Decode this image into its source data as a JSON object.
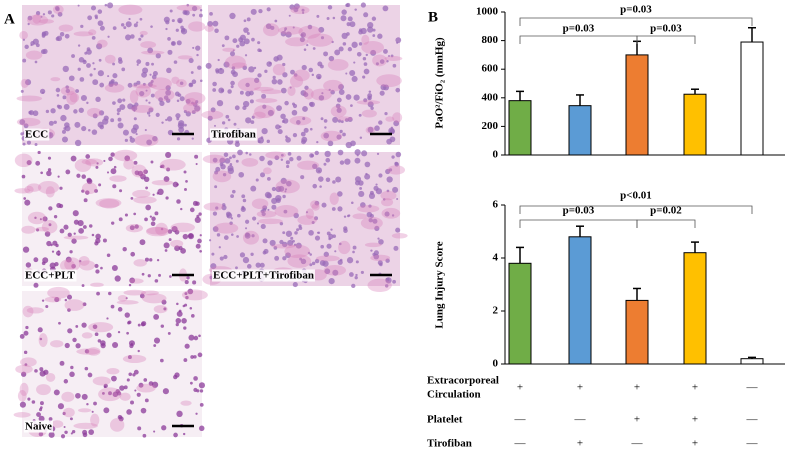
{
  "panel_a": {
    "letter": "A",
    "images": [
      {
        "label": "ECC"
      },
      {
        "label": "Tirofiban"
      },
      {
        "label": "ECC+PLT"
      },
      {
        "label": "ECC+PLT+Tirofiban"
      },
      {
        "label": "Naive"
      }
    ]
  },
  "panel_b": {
    "letter": "B"
  },
  "chart_data": [
    {
      "type": "bar",
      "y_label": "PaO²/FiO₂ (mmHg)",
      "categories": [
        null,
        null,
        null,
        null,
        null
      ],
      "values": [
        380,
        345,
        700,
        425,
        790
      ],
      "errors": [
        65,
        75,
        95,
        35,
        100
      ],
      "colors": [
        "#70ad47",
        "#5b9bd5",
        "#ed7d31",
        "#ffc000",
        "#ffffff"
      ],
      "ylim": [
        0,
        1000
      ],
      "yticks": [
        0,
        200,
        400,
        600,
        800,
        1000
      ],
      "annotations": [
        "p=0.03",
        "p=0.03",
        "p=0.03"
      ]
    },
    {
      "type": "bar",
      "y_label": "Lung Injury Score",
      "categories": [
        null,
        null,
        null,
        null,
        null
      ],
      "values": [
        3.8,
        4.8,
        2.4,
        4.2,
        0.2
      ],
      "errors": [
        0.6,
        0.4,
        0.45,
        0.4,
        0.05
      ],
      "colors": [
        "#70ad47",
        "#5b9bd5",
        "#ed7d31",
        "#ffc000",
        "#ffffff"
      ],
      "ylim": [
        0,
        6
      ],
      "yticks": [
        0,
        2,
        4,
        6
      ],
      "annotations": [
        "p=0.03",
        "p=0.02",
        "p<0.01"
      ]
    }
  ],
  "table": {
    "rows": [
      {
        "label": [
          "Extracorporeal",
          "Circulation"
        ],
        "marks": [
          "+",
          "+",
          "+",
          "+",
          "—"
        ]
      },
      {
        "label": [
          "Platelet"
        ],
        "marks": [
          "—",
          "—",
          "+",
          "+",
          "—"
        ]
      },
      {
        "label": [
          "Tirofiban"
        ],
        "marks": [
          "—",
          "+",
          "—",
          "+",
          "—"
        ]
      }
    ]
  }
}
